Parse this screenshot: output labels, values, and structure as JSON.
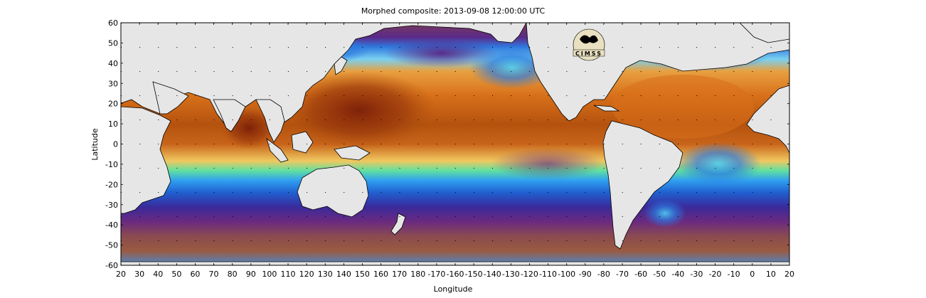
{
  "title": "Morphed composite: 2013-09-08 12:00:00 UTC",
  "xaxis": {
    "label": "Longitude",
    "ticks": [
      "20",
      "30",
      "40",
      "50",
      "60",
      "70",
      "80",
      "90",
      "100",
      "110",
      "120",
      "130",
      "140",
      "150",
      "160",
      "170",
      "180",
      "-170",
      "-160",
      "-150",
      "-140",
      "-130",
      "-120",
      "-110",
      "-100",
      "-90",
      "-80",
      "-70",
      "-60",
      "-50",
      "-40",
      "-30",
      "-20",
      "-10",
      "0",
      "10",
      "20"
    ]
  },
  "yaxis": {
    "label": "Latitude",
    "ticks": [
      "60",
      "50",
      "40",
      "30",
      "20",
      "10",
      "0",
      "-10",
      "-20",
      "-30",
      "-40",
      "-50",
      "-60"
    ]
  },
  "logo": {
    "text": "CIMSS"
  },
  "colors": {
    "land": "#e6e6e6",
    "coast": "#000000",
    "high_moisture": "#a0380a",
    "mid_moisture": "#e07a1e",
    "low_moisture": "#1e6ee0",
    "dry": "#5a1e78"
  }
}
